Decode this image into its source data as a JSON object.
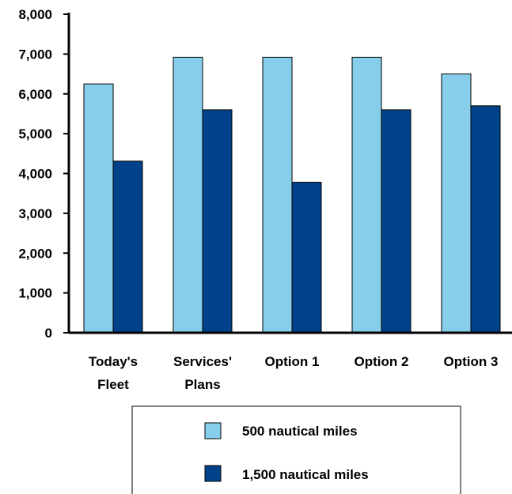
{
  "chart_data": {
    "type": "bar",
    "categories": [
      "Today's Fleet",
      "Services' Plans",
      "Option 1",
      "Option 2",
      "Option 3"
    ],
    "category_lines": [
      [
        "Today's",
        "Fleet"
      ],
      [
        "Services'",
        "Plans"
      ],
      [
        "Option 1"
      ],
      [
        "Option 2"
      ],
      [
        "Option 3"
      ]
    ],
    "series": [
      {
        "name": "500 nautical miles",
        "color": "#87ceea",
        "values": [
          6250,
          6920,
          6920,
          6920,
          6500
        ]
      },
      {
        "name": "1,500 nautical miles",
        "color": "#00428a",
        "values": [
          4310,
          5600,
          3780,
          5600,
          5700
        ]
      }
    ],
    "title": "",
    "xlabel": "",
    "ylabel": "",
    "ylim": [
      0,
      8000
    ],
    "yticks": [
      0,
      1000,
      2000,
      3000,
      4000,
      5000,
      6000,
      7000,
      8000
    ],
    "ytick_labels": [
      "0",
      "1,000",
      "2,000",
      "3,000",
      "4,000",
      "5,000",
      "6,000",
      "7,000",
      "8,000"
    ],
    "grid": false,
    "legend_position": "bottom"
  }
}
